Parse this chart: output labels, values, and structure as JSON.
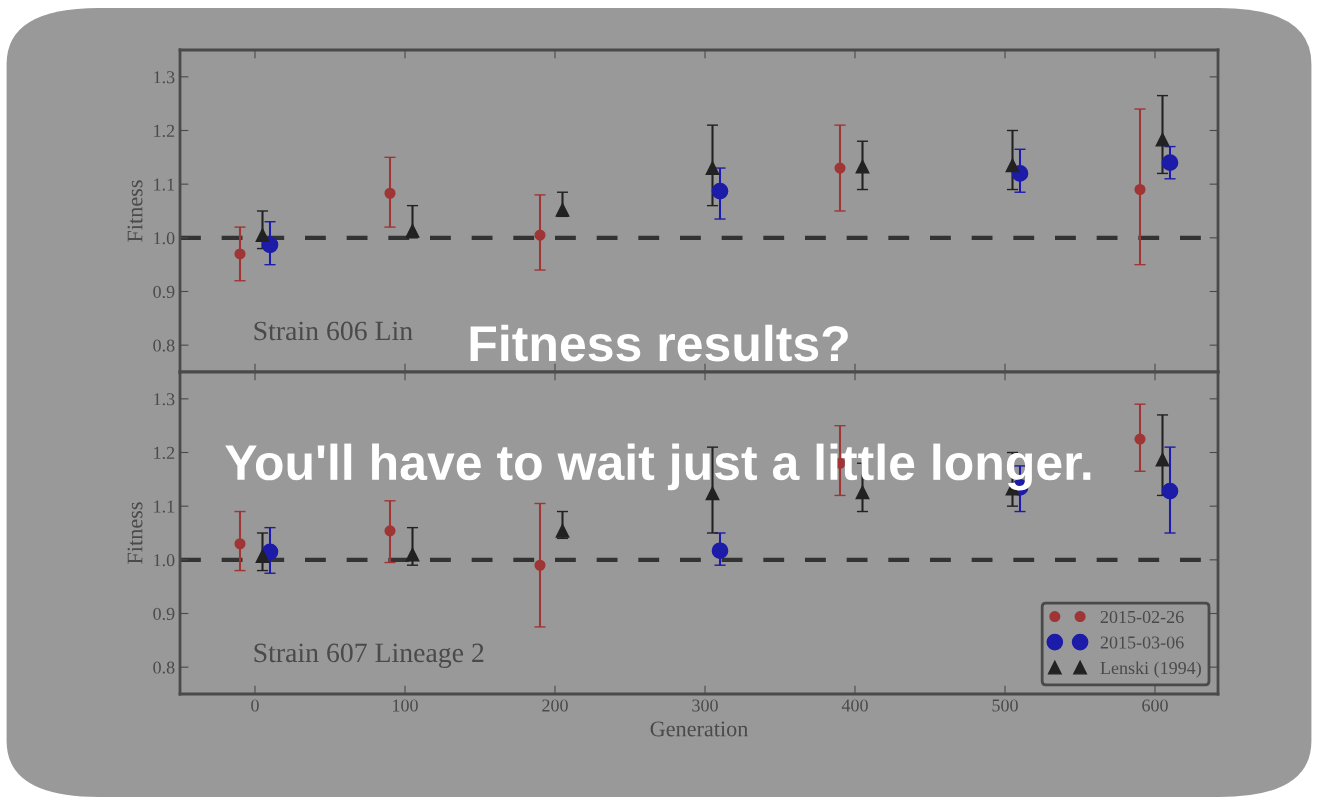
{
  "chart_data": [
    {
      "type": "scatter",
      "ylabel": "Fitness",
      "xlim": [
        -50,
        642
      ],
      "xticks": [
        0,
        100,
        200,
        300,
        400,
        500,
        600
      ],
      "ylim": [
        0.75,
        1.35
      ],
      "yticks": [
        0.8,
        0.9,
        {
          "value": 1.0,
          "label": "1.0"
        },
        1.1,
        1.2,
        1.3
      ],
      "tick_labels": "y",
      "legend": false,
      "grid": false,
      "ref_lines": [
        {
          "axis": "y",
          "value": 1.0,
          "color": "#333333",
          "line_style": "dashed"
        }
      ],
      "annotations": [
        "Strain 606 Lin",
        "Fitness results?"
      ],
      "series": [
        {
          "color": "#a03535",
          "marker": "circle",
          "x": [
            -10,
            90,
            190,
            390,
            590
          ],
          "values": [
            0.97,
            1.083,
            1.005,
            1.13,
            1.09
          ],
          "errors": [
            [
              0.92,
              1.02
            ],
            [
              1.02,
              1.15
            ],
            [
              0.94,
              1.08
            ],
            [
              1.05,
              1.21
            ],
            [
              0.95,
              1.24
            ]
          ]
        },
        {
          "color": "#1c1ca8",
          "marker": "circle",
          "x": [
            10,
            310,
            510,
            610
          ],
          "values": [
            0.987,
            1.087,
            1.12,
            1.14
          ],
          "errors": [
            [
              0.95,
              1.03
            ],
            [
              1.035,
              1.13
            ],
            [
              1.085,
              1.165
            ],
            [
              1.11,
              1.17
            ]
          ]
        },
        {
          "color": "#222222",
          "marker": "triangle",
          "x": [
            5,
            105,
            205,
            305,
            405,
            505,
            605
          ],
          "values": [
            1.005,
            1.013,
            1.052,
            1.13,
            1.133,
            1.135,
            1.183
          ],
          "errors": [
            [
              0.98,
              1.05
            ],
            [
              1.0,
              1.06
            ],
            [
              1.04,
              1.085
            ],
            [
              1.06,
              1.21
            ],
            [
              1.09,
              1.18
            ],
            [
              1.09,
              1.2
            ],
            [
              1.12,
              1.265
            ]
          ]
        }
      ]
    },
    {
      "type": "scatter",
      "xlabel": "Generation",
      "ylabel": "Fitness",
      "xlim": [
        -50,
        642
      ],
      "xticks": [
        0,
        100,
        200,
        300,
        400,
        500,
        600
      ],
      "ylim": [
        0.75,
        1.35
      ],
      "yticks": [
        0.8,
        0.9,
        {
          "value": 1.0,
          "label": "1.0"
        },
        1.1,
        1.2,
        1.3
      ],
      "legend": "bottom right",
      "grid": false,
      "ref_lines": [
        {
          "axis": "y",
          "value": 1.0,
          "color": "#333333",
          "line_style": "dashed"
        }
      ],
      "annotations": [
        "Strain 607 Lineage 2",
        "You'll have to wait just a little longer."
      ],
      "series": [
        {
          "name": "2015-02-26",
          "color": "#a03535",
          "marker": "circle",
          "x": [
            -10,
            90,
            190,
            390,
            590
          ],
          "values": [
            1.03,
            1.054,
            0.99,
            1.18,
            1.225
          ],
          "errors": [
            [
              0.98,
              1.09
            ],
            [
              0.995,
              1.11
            ],
            [
              0.875,
              1.105
            ],
            [
              1.12,
              1.25
            ],
            [
              1.165,
              1.29
            ]
          ]
        },
        {
          "name": "2015-03-06",
          "color": "#1c1ca8",
          "marker": "circle",
          "x": [
            10,
            310,
            510,
            610
          ],
          "values": [
            1.015,
            1.017,
            1.135,
            1.128
          ],
          "errors": [
            [
              0.975,
              1.06
            ],
            [
              0.99,
              1.05
            ],
            [
              1.09,
              1.175
            ],
            [
              1.05,
              1.21
            ]
          ]
        },
        {
          "name": "Lenski (1994)",
          "color": "#222222",
          "marker": "triangle",
          "x": [
            5,
            105,
            205,
            305,
            405,
            505,
            605
          ],
          "values": [
            1.007,
            1.01,
            1.054,
            1.124,
            1.126,
            1.133,
            1.187
          ],
          "errors": [
            [
              0.98,
              1.05
            ],
            [
              0.99,
              1.06
            ],
            [
              1.04,
              1.09
            ],
            [
              1.05,
              1.21
            ],
            [
              1.09,
              1.18
            ],
            [
              1.1,
              1.2
            ],
            [
              1.12,
              1.27
            ]
          ]
        }
      ]
    }
  ]
}
